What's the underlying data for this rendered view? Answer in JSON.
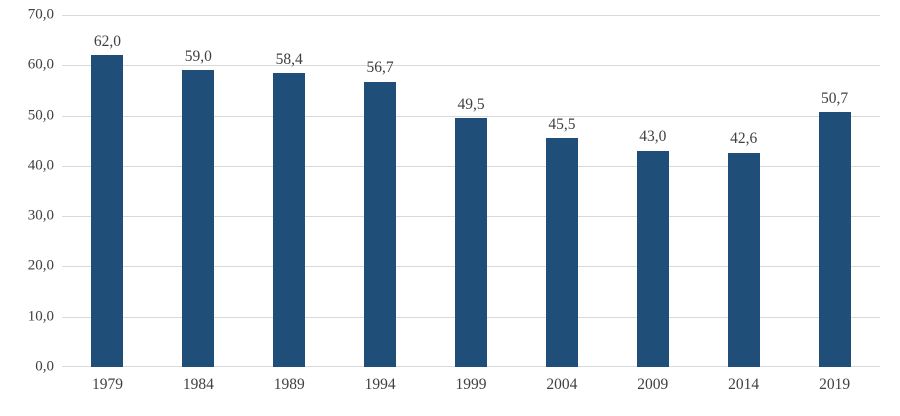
{
  "chart_data": {
    "type": "bar",
    "categories": [
      "1979",
      "1984",
      "1989",
      "1994",
      "1999",
      "2004",
      "2009",
      "2014",
      "2019"
    ],
    "values": [
      62.0,
      59.0,
      58.4,
      56.7,
      49.5,
      45.5,
      43.0,
      42.6,
      50.7
    ],
    "value_labels": [
      "62,0",
      "59,0",
      "58,4",
      "56,7",
      "49,5",
      "45,5",
      "43,0",
      "42,6",
      "50,7"
    ],
    "y_ticks": [
      0,
      10,
      20,
      30,
      40,
      50,
      60,
      70
    ],
    "y_tick_labels": [
      "0,0",
      "10,0",
      "20,0",
      "30,0",
      "40,0",
      "50,0",
      "60,0",
      "70,0"
    ],
    "ylim": [
      0,
      70
    ],
    "grid": true,
    "legend_position": "none",
    "bar_color": "#1f4e79",
    "gridline_color": "#d9d9d9",
    "axis_line_color": "#d9d9d9",
    "label_color": "#404040"
  }
}
